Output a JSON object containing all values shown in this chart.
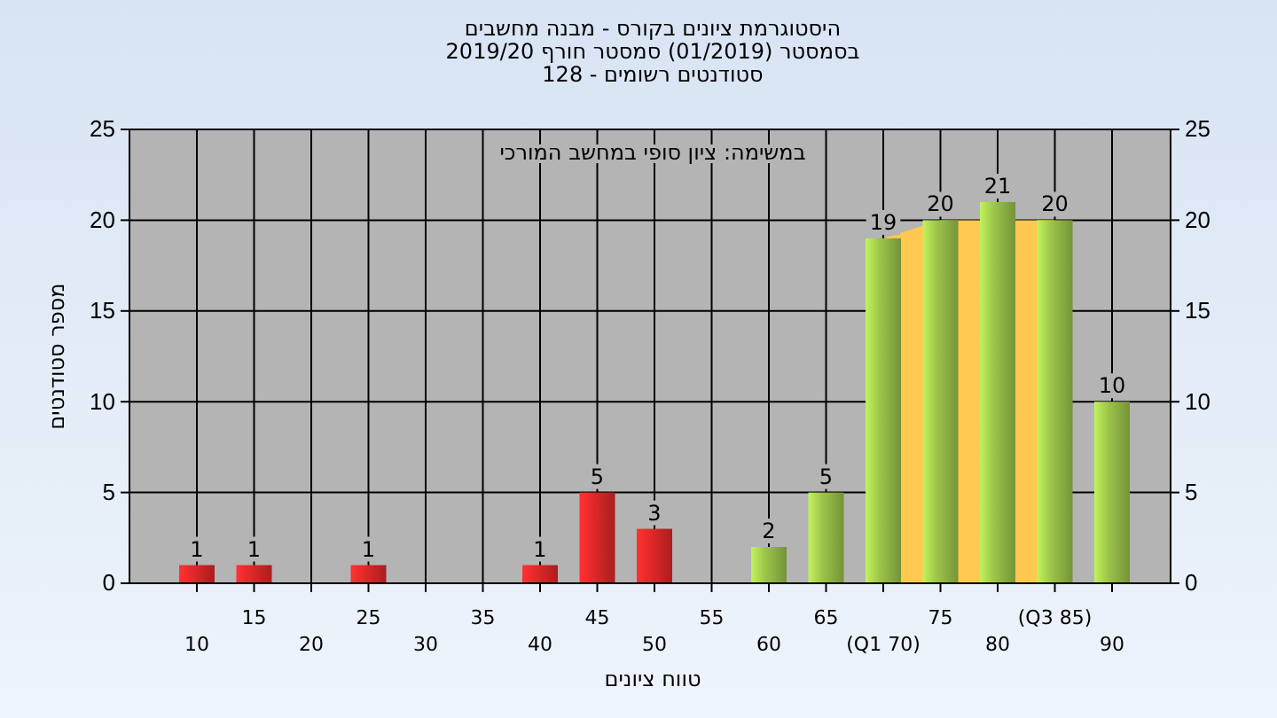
{
  "chart_data": {
    "type": "bar",
    "title": "היסטוגרמת ציונים בקורס - מבנה מחשבים",
    "subtitle": "בסמסטר (01/2019) סמסטר חורף 2019/20\nסטודנטים רשומים - 128",
    "xlabel": "טווח ציונים",
    "ylabel": "מספר סטודנטים",
    "annotations": [
      "במשימה: ציון סופי במחשב המורכי"
    ],
    "categories": [
      "10",
      "15",
      "20",
      "25",
      "30",
      "35",
      "40",
      "45",
      "50",
      "55",
      "60",
      "65",
      "(Q1 70)",
      "75",
      "80",
      "(Q3 85)",
      "90"
    ],
    "series": [
      {
        "type": "area",
        "color": "#ffc850",
        "values": [
          null,
          null,
          null,
          null,
          null,
          null,
          null,
          null,
          null,
          null,
          null,
          null,
          19,
          20,
          null,
          20,
          null
        ]
      },
      {
        "colors": [
          "#e02828",
          "#e02828",
          "#e02828",
          "#e02828",
          "#e02828",
          "#e02828",
          "#e02828",
          "#e02828",
          "#e02828",
          "#e02828",
          "#9cc44a",
          "#9cc44a",
          "#9cc44a",
          "#9cc44a",
          "#9cc44a",
          "#9cc44a",
          "#9cc44a"
        ],
        "values": [
          1,
          1,
          0,
          1,
          0,
          0,
          1,
          5,
          3,
          0,
          2,
          5,
          19,
          20,
          21,
          20,
          10
        ],
        "value_labels": [
          "1",
          "1",
          null,
          "1",
          null,
          null,
          "1",
          "5",
          "3",
          null,
          "2",
          "5",
          "19",
          "20",
          "21",
          "20",
          "10"
        ]
      }
    ],
    "ylim": [
      0,
      25
    ],
    "yticks": [
      0,
      5,
      10,
      15,
      20,
      25
    ],
    "y2lim": [
      0,
      25
    ],
    "y2ticks": [
      0,
      5,
      10,
      15,
      20,
      25
    ],
    "grid": true
  }
}
